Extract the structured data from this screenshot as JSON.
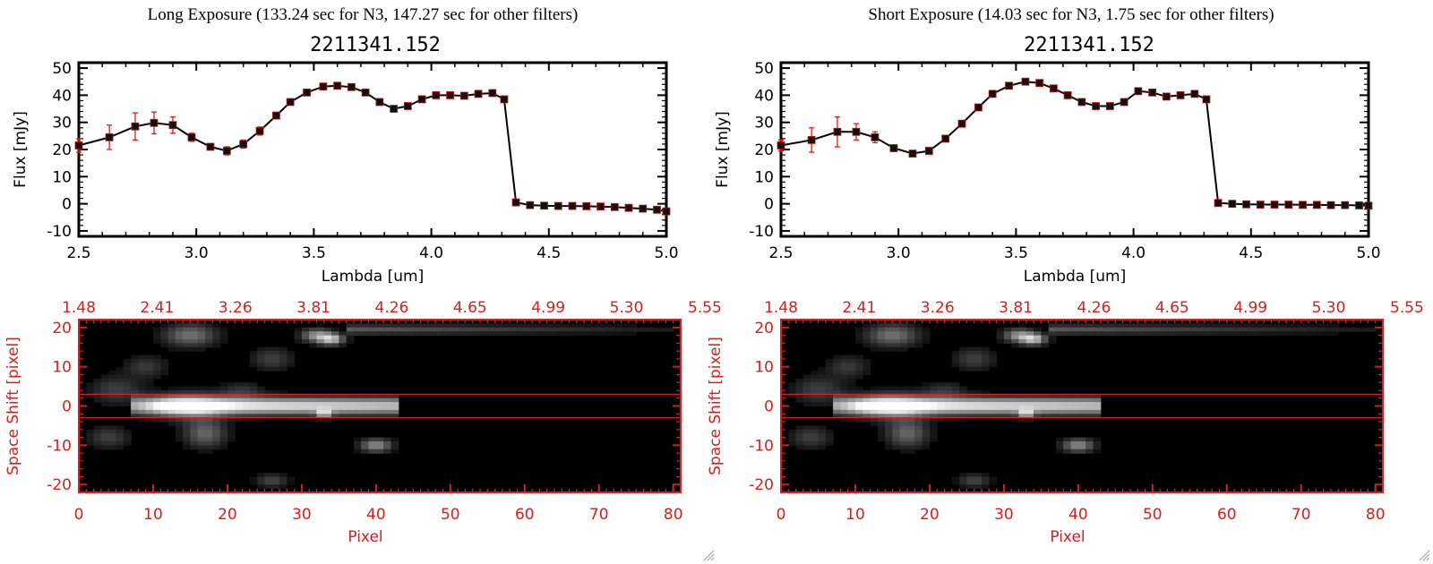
{
  "colors": {
    "axis": "#000000",
    "accent": "#d42020",
    "marker": "#111111",
    "errorbar": "#e01a1a",
    "line": "#000000"
  },
  "panels": [
    {
      "header": "Long Exposure (133.24 sec for N3, 147.27 sec for other filters)",
      "object_id": "2211341.152",
      "resize_grip_icon": "resize-grip-icon"
    },
    {
      "header": "Short Exposure (14.03 sec for N3, 1.75 sec for other filters)",
      "object_id": "2211341.152",
      "resize_grip_icon": "resize-grip-icon"
    }
  ],
  "chart_data": [
    {
      "type": "line",
      "panel": 0,
      "title": "2211341.152",
      "xlabel": "Lambda [um]",
      "ylabel": "Flux [mJy]",
      "xlim": [
        2.5,
        5.0
      ],
      "ylim": [
        -12,
        52
      ],
      "x_ticks": [
        "2.5",
        "3.0",
        "3.5",
        "4.0",
        "4.5",
        "5.0"
      ],
      "y_ticks": [
        "-10",
        "0",
        "10",
        "20",
        "30",
        "40",
        "50"
      ],
      "grid": false,
      "x": [
        2.5,
        2.63,
        2.74,
        2.82,
        2.9,
        2.98,
        3.06,
        3.13,
        3.2,
        3.27,
        3.34,
        3.4,
        3.47,
        3.54,
        3.6,
        3.66,
        3.72,
        3.78,
        3.84,
        3.9,
        3.96,
        4.02,
        4.08,
        4.14,
        4.2,
        4.26,
        4.31,
        4.36,
        4.42,
        4.48,
        4.54,
        4.6,
        4.66,
        4.72,
        4.78,
        4.84,
        4.9,
        4.96,
        5.0
      ],
      "y": [
        21.5,
        24.5,
        28.5,
        29.8,
        29.0,
        24.5,
        21.0,
        19.5,
        22.0,
        26.8,
        32.5,
        37.5,
        41.0,
        43.2,
        43.5,
        43.0,
        41.0,
        37.5,
        35.0,
        36.0,
        38.5,
        40.0,
        40.0,
        39.8,
        40.5,
        40.8,
        38.5,
        0.5,
        -0.5,
        -0.7,
        -0.8,
        -0.8,
        -0.9,
        -1.0,
        -1.2,
        -1.5,
        -1.8,
        -2.2,
        -2.8
      ],
      "yerr": [
        2.5,
        4.5,
        5.0,
        4.0,
        3.0,
        1.5,
        1.0,
        1.5,
        1.5,
        1.5,
        1.2,
        1.0,
        1.0,
        0.8,
        0.8,
        0.8,
        0.8,
        0.8,
        0.8,
        0.8,
        0.8,
        0.8,
        0.8,
        0.8,
        0.8,
        0.8,
        0.8,
        0.5,
        0.5,
        0.5,
        0.5,
        0.5,
        0.5,
        0.5,
        0.5,
        0.5,
        0.5,
        0.5,
        0.5
      ]
    },
    {
      "type": "line",
      "panel": 1,
      "title": "2211341.152",
      "xlabel": "Lambda [um]",
      "ylabel": "Flux [mJy]",
      "xlim": [
        2.5,
        5.0
      ],
      "ylim": [
        -12,
        52
      ],
      "x_ticks": [
        "2.5",
        "3.0",
        "3.5",
        "4.0",
        "4.5",
        "5.0"
      ],
      "y_ticks": [
        "-10",
        "0",
        "10",
        "20",
        "30",
        "40",
        "50"
      ],
      "grid": false,
      "x": [
        2.5,
        2.63,
        2.74,
        2.82,
        2.9,
        2.98,
        3.06,
        3.13,
        3.2,
        3.27,
        3.34,
        3.4,
        3.47,
        3.54,
        3.6,
        3.66,
        3.72,
        3.78,
        3.84,
        3.9,
        3.96,
        4.02,
        4.08,
        4.14,
        4.2,
        4.26,
        4.31,
        4.36,
        4.42,
        4.48,
        4.54,
        4.6,
        4.66,
        4.72,
        4.78,
        4.84,
        4.9,
        4.96,
        5.0
      ],
      "y": [
        21.5,
        23.5,
        26.5,
        26.5,
        24.5,
        20.5,
        18.5,
        19.5,
        24.0,
        29.5,
        35.5,
        40.5,
        43.5,
        45.0,
        44.5,
        42.5,
        40.0,
        37.5,
        36.0,
        36.0,
        37.5,
        41.5,
        41.0,
        39.5,
        40.0,
        40.5,
        38.5,
        0.3,
        0.0,
        -0.2,
        -0.3,
        -0.3,
        -0.3,
        -0.4,
        -0.4,
        -0.5,
        -0.5,
        -0.6,
        -0.7
      ],
      "yerr": [
        2.0,
        4.5,
        5.5,
        3.0,
        2.0,
        1.2,
        1.0,
        1.2,
        1.2,
        1.2,
        1.0,
        1.0,
        0.8,
        0.8,
        0.8,
        0.8,
        0.8,
        0.8,
        0.8,
        0.8,
        0.8,
        0.8,
        0.8,
        0.8,
        0.8,
        0.8,
        0.8,
        0.5,
        0.5,
        0.5,
        0.5,
        0.5,
        0.5,
        0.5,
        0.5,
        0.5,
        0.5,
        0.5,
        0.5
      ]
    },
    {
      "type": "heatmap",
      "panel": 0,
      "xlabel": "Pixel",
      "ylabel": "Space Shift [pixel]",
      "xlim": [
        0,
        81
      ],
      "ylim": [
        -22,
        22
      ],
      "x_ticks": [
        "0",
        "10",
        "20",
        "30",
        "40",
        "50",
        "60",
        "70",
        "80"
      ],
      "y_ticks": [
        "-20",
        "-10",
        "0",
        "10",
        "20"
      ],
      "top_ticks": [
        "1.48",
        "2.41",
        "3.26",
        "3.81",
        "4.26",
        "4.65",
        "4.99",
        "5.30",
        "5.55"
      ],
      "extraction_band": [
        -3,
        3
      ],
      "colormap": "grayscale"
    },
    {
      "type": "heatmap",
      "panel": 1,
      "xlabel": "Pixel",
      "ylabel": "Space Shift [pixel]",
      "xlim": [
        0,
        81
      ],
      "ylim": [
        -22,
        22
      ],
      "x_ticks": [
        "0",
        "10",
        "20",
        "30",
        "40",
        "50",
        "60",
        "70",
        "80"
      ],
      "y_ticks": [
        "-20",
        "-10",
        "0",
        "10",
        "20"
      ],
      "top_ticks": [
        "1.48",
        "2.41",
        "3.26",
        "3.81",
        "4.26",
        "4.65",
        "4.99",
        "5.30",
        "5.55"
      ],
      "extraction_band": [
        -3,
        3
      ],
      "colormap": "grayscale"
    }
  ]
}
